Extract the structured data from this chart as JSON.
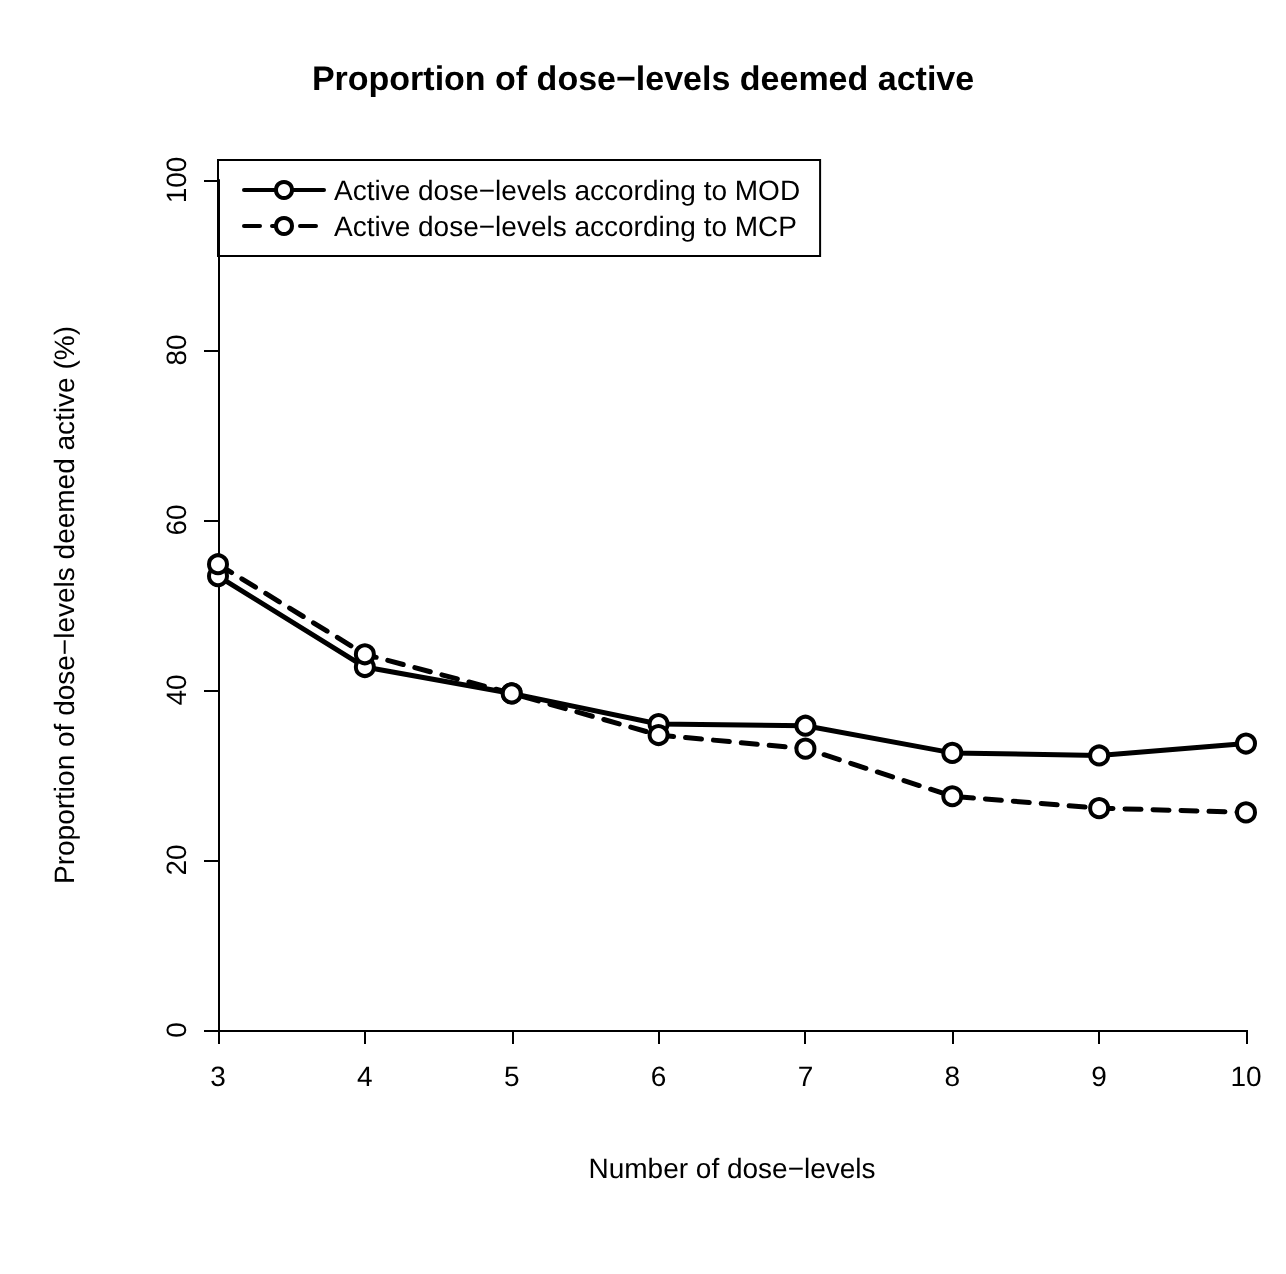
{
  "chart_data": {
    "type": "line",
    "title": "Proportion of dose−levels deemed active",
    "xlabel": "Number of dose−levels",
    "ylabel": "Proportion of dose−levels deemed active (%)",
    "x": [
      3,
      4,
      5,
      6,
      7,
      8,
      9,
      10
    ],
    "xlim": [
      3,
      10
    ],
    "xticks": [
      3,
      4,
      5,
      6,
      7,
      8,
      9,
      10
    ],
    "ylim": [
      0,
      100
    ],
    "yticks": [
      0,
      20,
      40,
      60,
      80,
      100
    ],
    "series": [
      {
        "name": "Active dose−levels according to MOD",
        "color": "#000000",
        "line_style": "solid",
        "values": [
          53.4,
          42.7,
          39.6,
          36.0,
          35.8,
          32.6,
          32.3,
          33.7
        ]
      },
      {
        "name": "Active dose−levels according to MCP",
        "color": "#000000",
        "line_style": "dashed",
        "values": [
          54.8,
          44.2,
          39.6,
          34.7,
          33.1,
          27.5,
          26.1,
          25.6
        ]
      }
    ],
    "marker": "circle",
    "legend": "top left",
    "grid": false
  }
}
